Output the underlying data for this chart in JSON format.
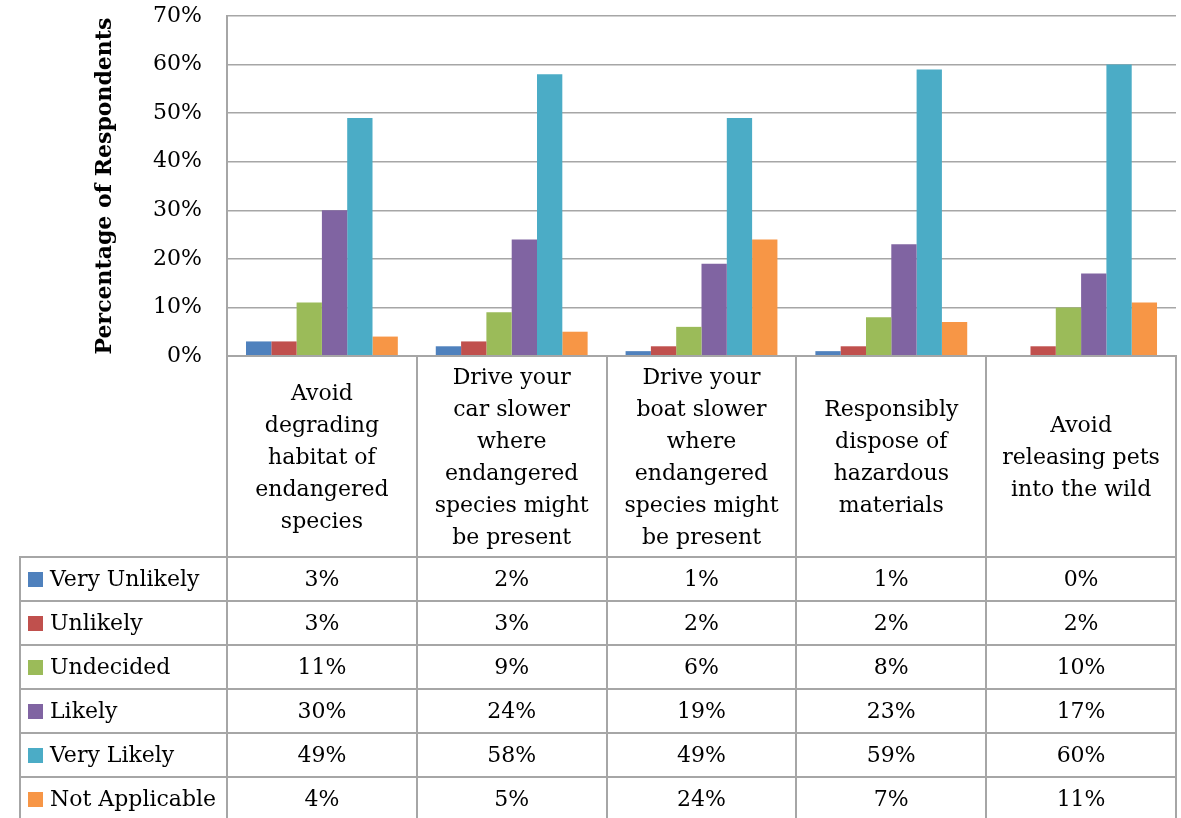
{
  "chart_data": {
    "type": "bar",
    "ylabel": "Percentage of Respondents",
    "categories": [
      "Avoid degrading habitat of endangered species",
      "Drive your car slower where endangered species might be present",
      "Drive your boat slower where endangered species might be present",
      "Responsibly dispose of hazardous materials",
      "Avoid releasing pets into the wild"
    ],
    "series": [
      {
        "name": "Very Unlikely",
        "color": "#4f81bd",
        "values": [
          3,
          2,
          1,
          1,
          0
        ],
        "value_labels": [
          "3%",
          "2%",
          "1%",
          "1%",
          "0%"
        ]
      },
      {
        "name": "Unlikely",
        "color": "#c0504d",
        "values": [
          3,
          3,
          2,
          2,
          2
        ],
        "value_labels": [
          "3%",
          "3%",
          "2%",
          "2%",
          "2%"
        ]
      },
      {
        "name": "Undecided",
        "color": "#9bbb59",
        "values": [
          11,
          9,
          6,
          8,
          10
        ],
        "value_labels": [
          "11%",
          "9%",
          "6%",
          "8%",
          "10%"
        ]
      },
      {
        "name": "Likely",
        "color": "#8064a2",
        "values": [
          30,
          24,
          19,
          23,
          17
        ],
        "value_labels": [
          "30%",
          "24%",
          "19%",
          "23%",
          "17%"
        ]
      },
      {
        "name": "Very Likely",
        "color": "#4bacc6",
        "values": [
          49,
          58,
          49,
          59,
          60
        ],
        "value_labels": [
          "49%",
          "58%",
          "49%",
          "59%",
          "60%"
        ]
      },
      {
        "name": "Not Applicable",
        "color": "#f79646",
        "values": [
          4,
          5,
          24,
          7,
          11
        ],
        "value_labels": [
          "4%",
          "5%",
          "24%",
          "7%",
          "11%"
        ]
      }
    ],
    "ylim": [
      0,
      70
    ],
    "yticks": [
      {
        "value": 0,
        "label": "0%"
      },
      {
        "value": 10,
        "label": "10%"
      },
      {
        "value": 20,
        "label": "20%"
      },
      {
        "value": 30,
        "label": "30%"
      },
      {
        "value": 40,
        "label": "40%"
      },
      {
        "value": 50,
        "label": "50%"
      },
      {
        "value": 60,
        "label": "60%"
      },
      {
        "value": 70,
        "label": "70%"
      }
    ],
    "grid": "y",
    "legend": "bottom"
  }
}
